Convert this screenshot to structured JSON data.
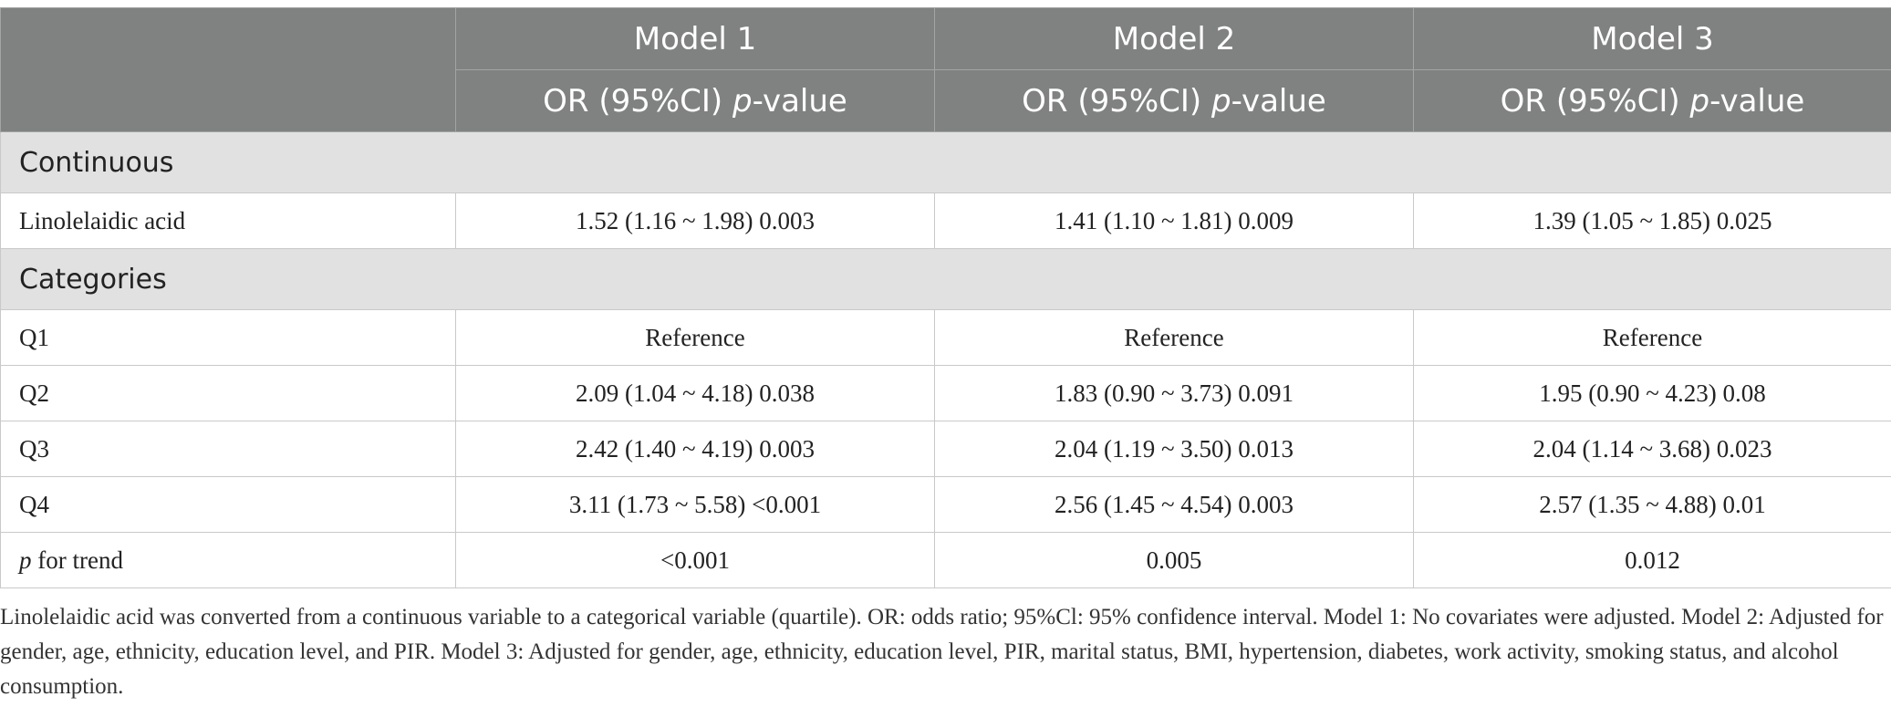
{
  "header": {
    "models": [
      "Model 1",
      "Model 2",
      "Model 3"
    ],
    "sub_prefix": "OR (95%CI) ",
    "sub_italic": "p",
    "sub_suffix": "-value"
  },
  "sections": {
    "continuous": "Continuous",
    "categories": "Categories"
  },
  "rows": {
    "linolelaidic": {
      "label": "Linolelaidic acid",
      "values": [
        "1.52 (1.16 ~ 1.98) 0.003",
        "1.41 (1.10 ~ 1.81) 0.009",
        "1.39 (1.05 ~ 1.85) 0.025"
      ]
    },
    "q1": {
      "label": "Q1",
      "values": [
        "Reference",
        "Reference",
        "Reference"
      ]
    },
    "q2": {
      "label": "Q2",
      "values": [
        "2.09 (1.04 ~ 4.18) 0.038",
        "1.83 (0.90 ~ 3.73) 0.091",
        "1.95 (0.90 ~ 4.23) 0.08"
      ]
    },
    "q3": {
      "label": "Q3",
      "values": [
        "2.42 (1.40 ~ 4.19) 0.003",
        "2.04 (1.19 ~ 3.50) 0.013",
        "2.04 (1.14 ~ 3.68) 0.023"
      ]
    },
    "q4": {
      "label": "Q4",
      "values": [
        "3.11 (1.73 ~ 5.58) <0.001",
        "2.56 (1.45 ~ 4.54) 0.003",
        "2.57 (1.35 ~ 4.88) 0.01"
      ]
    },
    "trend": {
      "label_italic": "p",
      "label_rest": " for trend",
      "values": [
        "<0.001",
        "0.005",
        "0.012"
      ]
    }
  },
  "footnote": "Linolelaidic acid was converted from a continuous variable to a categorical variable (quartile). OR: odds ratio; 95%Cl: 95% confidence interval. Model 1: No covariates were adjusted. Model 2: Adjusted for gender, age, ethnicity, education level, and PIR. Model 3: Adjusted for gender, age, ethnicity, education level, PIR, marital status, BMI, hypertension, diabetes, work activity, smoking status, and alcohol consumption."
}
